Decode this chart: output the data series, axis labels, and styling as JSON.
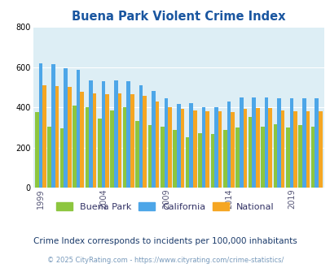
{
  "title": "Buena Park Violent Crime Index",
  "subtitle": "Crime Index corresponds to incidents per 100,000 inhabitants",
  "footer": "© 2025 CityRating.com - https://www.cityrating.com/crime-statistics/",
  "years": [
    1999,
    2000,
    2001,
    2002,
    2003,
    2004,
    2005,
    2006,
    2007,
    2008,
    2009,
    2010,
    2011,
    2012,
    2013,
    2014,
    2015,
    2016,
    2017,
    2018,
    2019,
    2020,
    2021
  ],
  "buena_park": [
    375,
    305,
    295,
    410,
    400,
    345,
    385,
    400,
    330,
    310,
    305,
    285,
    250,
    270,
    265,
    285,
    300,
    350,
    305,
    315,
    300,
    310,
    305
  ],
  "california": [
    620,
    615,
    595,
    585,
    535,
    530,
    535,
    530,
    510,
    480,
    445,
    415,
    420,
    400,
    400,
    430,
    450,
    450,
    450,
    445,
    445,
    445,
    445
  ],
  "national": [
    510,
    505,
    500,
    475,
    470,
    465,
    470,
    465,
    455,
    430,
    400,
    390,
    385,
    380,
    380,
    375,
    390,
    395,
    395,
    385,
    380,
    380,
    380
  ],
  "buena_park_color": "#8dc63f",
  "california_color": "#4da6e8",
  "national_color": "#f5a623",
  "bg_color": "#ddeef5",
  "ylim": [
    0,
    800
  ],
  "yticks": [
    0,
    200,
    400,
    600,
    800
  ],
  "title_color": "#1a56a0",
  "subtitle_color": "#1a3a6a",
  "footer_color": "#7799bb",
  "xtick_labels": [
    "1999",
    "2004",
    "2009",
    "2014",
    "2019"
  ],
  "xtick_positions": [
    0,
    5,
    10,
    15,
    20
  ]
}
